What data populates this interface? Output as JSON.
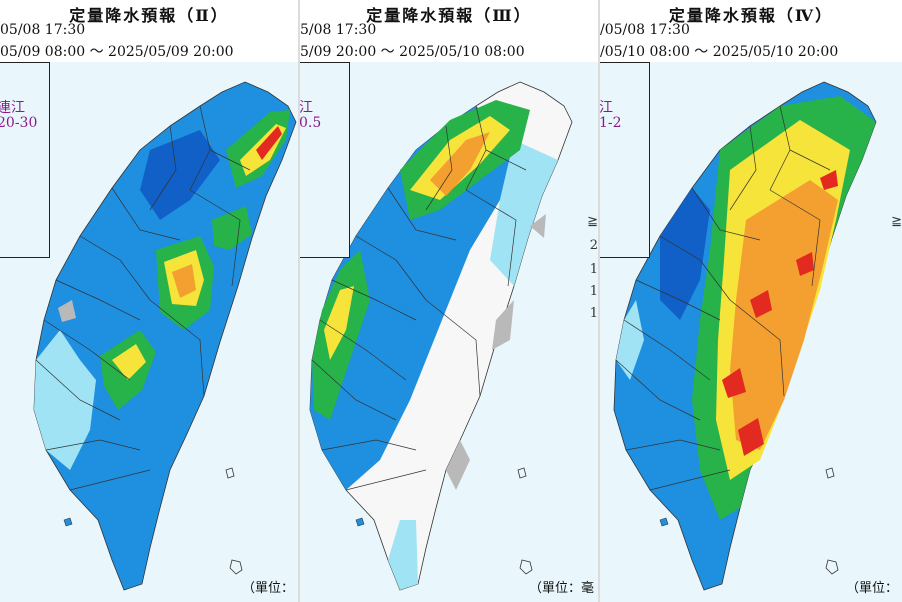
{
  "panels": [
    {
      "title": "定量降水預報（Ⅱ）",
      "issued": "05/08 17:30",
      "valid": "05/09 08:00 ～ 2025/05/09 20:00",
      "inset_name": "連江",
      "inset_value": "20-30",
      "unit": "（單位："
    },
    {
      "title": "定量降水預報（Ⅲ）",
      "issued": "5/08 17:30",
      "valid": "5/09 20:00 ～ 2025/05/10 08:00",
      "inset_name": "江",
      "inset_value": "0.5",
      "unit": "（單位：毫",
      "legend_fragments": [
        "≧",
        "2",
        "1",
        "1",
        "1"
      ]
    },
    {
      "title": "定量降水預報（Ⅳ）",
      "issued": "/05/08 17:30",
      "valid": "/05/10 08:00 ～ 2025/05/10 20:00",
      "inset_name": "江",
      "inset_value": "1-2",
      "unit": "（單位：",
      "legend_fragments": [
        "≧"
      ]
    }
  ],
  "colors": {
    "sea": "#e9f7fc",
    "light_blue": "#9fe3f5",
    "blue": "#1f8fe0",
    "dark_blue": "#1060c8",
    "green": "#27b24a",
    "yellow": "#f7e43a",
    "orange": "#f4a030",
    "red": "#e22a20",
    "grey": "#b9b9b9",
    "white_land": "#f7f7f7"
  }
}
